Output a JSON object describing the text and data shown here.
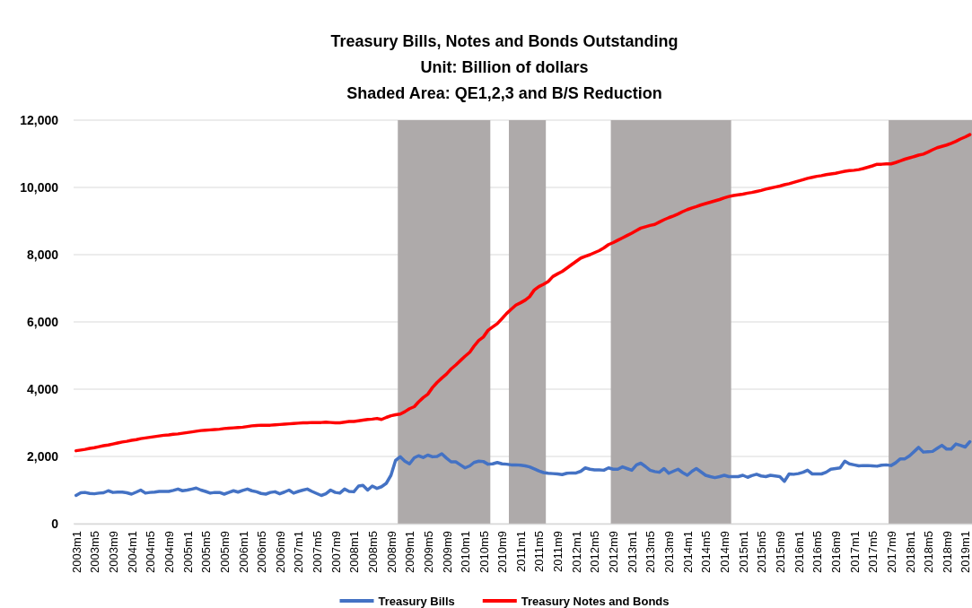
{
  "chart_data": {
    "type": "line",
    "title": "Treasury Bills, Notes and Bonds Outstanding",
    "subtitle": "Unit: Billion of dollars\nShaded Area: QE1,2,3 and B/S Reduction",
    "x": [
      "2003-01",
      "2003-02",
      "2003-03",
      "2003-04",
      "2003-05",
      "2003-06",
      "2003-07",
      "2003-08",
      "2003-09",
      "2003-10",
      "2003-11",
      "2003-12",
      "2004-01",
      "2004-02",
      "2004-03",
      "2004-04",
      "2004-05",
      "2004-06",
      "2004-07",
      "2004-08",
      "2004-09",
      "2004-10",
      "2004-11",
      "2004-12",
      "2005-01",
      "2005-02",
      "2005-03",
      "2005-04",
      "2005-05",
      "2005-06",
      "2005-07",
      "2005-08",
      "2005-09",
      "2005-10",
      "2005-11",
      "2005-12",
      "2006-01",
      "2006-02",
      "2006-03",
      "2006-04",
      "2006-05",
      "2006-06",
      "2006-07",
      "2006-08",
      "2006-09",
      "2006-10",
      "2006-11",
      "2006-12",
      "2007-01",
      "2007-02",
      "2007-03",
      "2007-04",
      "2007-05",
      "2007-06",
      "2007-07",
      "2007-08",
      "2007-09",
      "2007-10",
      "2007-11",
      "2007-12",
      "2008-01",
      "2008-02",
      "2008-03",
      "2008-04",
      "2008-05",
      "2008-06",
      "2008-07",
      "2008-08",
      "2008-09",
      "2008-10",
      "2008-11",
      "2008-12",
      "2009-01",
      "2009-02",
      "2009-03",
      "2009-04",
      "2009-05",
      "2009-06",
      "2009-07",
      "2009-08",
      "2009-09",
      "2009-10",
      "2009-11",
      "2009-12",
      "2010-01",
      "2010-02",
      "2010-03",
      "2010-04",
      "2010-05",
      "2010-06",
      "2010-07",
      "2010-08",
      "2010-09",
      "2010-10",
      "2010-11",
      "2010-12",
      "2011-01",
      "2011-02",
      "2011-03",
      "2011-04",
      "2011-05",
      "2011-06",
      "2011-07",
      "2011-08",
      "2011-09",
      "2011-10",
      "2011-11",
      "2011-12",
      "2012-01",
      "2012-02",
      "2012-03",
      "2012-04",
      "2012-05",
      "2012-06",
      "2012-07",
      "2012-08",
      "2012-09",
      "2012-10",
      "2012-11",
      "2012-12",
      "2013-01",
      "2013-02",
      "2013-03",
      "2013-04",
      "2013-05",
      "2013-06",
      "2013-07",
      "2013-08",
      "2013-09",
      "2013-10",
      "2013-11",
      "2013-12",
      "2014-01",
      "2014-02",
      "2014-03",
      "2014-04",
      "2014-05",
      "2014-06",
      "2014-07",
      "2014-08",
      "2014-09",
      "2014-10",
      "2014-11",
      "2014-12",
      "2015-01",
      "2015-02",
      "2015-03",
      "2015-04",
      "2015-05",
      "2015-06",
      "2015-07",
      "2015-08",
      "2015-09",
      "2015-10",
      "2015-11",
      "2015-12",
      "2016-01",
      "2016-02",
      "2016-03",
      "2016-04",
      "2016-05",
      "2016-06",
      "2016-07",
      "2016-08",
      "2016-09",
      "2016-10",
      "2016-11",
      "2016-12",
      "2017-01",
      "2017-02",
      "2017-03",
      "2017-04",
      "2017-05",
      "2017-06",
      "2017-07",
      "2017-08",
      "2017-09",
      "2017-10",
      "2017-11",
      "2017-12",
      "2018-01",
      "2018-02",
      "2018-03",
      "2018-04",
      "2018-05",
      "2018-06",
      "2018-07",
      "2018-08",
      "2018-09",
      "2018-10",
      "2018-11",
      "2018-12",
      "2019-01",
      "2019-02"
    ],
    "series": [
      {
        "name": "Treasury Bills",
        "color": "#4472c4",
        "values": [
          840,
          920,
          930,
          900,
          890,
          910,
          920,
          980,
          930,
          940,
          940,
          920,
          880,
          940,
          1000,
          910,
          930,
          940,
          960,
          960,
          960,
          990,
          1030,
          980,
          1000,
          1030,
          1060,
          1000,
          960,
          910,
          930,
          930,
          880,
          930,
          980,
          940,
          990,
          1030,
          980,
          950,
          900,
          880,
          930,
          950,
          890,
          940,
          1000,
          910,
          960,
          1000,
          1030,
          960,
          900,
          840,
          890,
          1000,
          930,
          910,
          1030,
          960,
          950,
          1120,
          1140,
          1000,
          1120,
          1050,
          1100,
          1200,
          1440,
          1880,
          1990,
          1860,
          1780,
          1960,
          2020,
          1970,
          2040,
          1990,
          2000,
          2080,
          1950,
          1840,
          1840,
          1750,
          1660,
          1720,
          1820,
          1860,
          1850,
          1770,
          1780,
          1820,
          1780,
          1770,
          1750,
          1750,
          1740,
          1720,
          1690,
          1630,
          1570,
          1520,
          1500,
          1490,
          1480,
          1460,
          1500,
          1510,
          1510,
          1560,
          1660,
          1620,
          1600,
          1600,
          1590,
          1660,
          1620,
          1620,
          1690,
          1640,
          1590,
          1750,
          1800,
          1700,
          1590,
          1550,
          1530,
          1640,
          1500,
          1560,
          1620,
          1520,
          1440,
          1560,
          1640,
          1540,
          1440,
          1400,
          1370,
          1400,
          1440,
          1400,
          1400,
          1400,
          1440,
          1380,
          1430,
          1470,
          1420,
          1400,
          1440,
          1420,
          1400,
          1260,
          1480,
          1470,
          1490,
          1530,
          1590,
          1480,
          1480,
          1480,
          1530,
          1620,
          1640,
          1660,
          1860,
          1780,
          1750,
          1720,
          1730,
          1730,
          1720,
          1710,
          1740,
          1750,
          1730,
          1810,
          1930,
          1930,
          2020,
          2150,
          2270,
          2130,
          2140,
          2150,
          2240,
          2330,
          2220,
          2220,
          2370,
          2330,
          2280,
          2440
        ]
      },
      {
        "name": "Treasury Notes and Bonds",
        "color": "#ff0000",
        "values": [
          2170,
          2190,
          2210,
          2240,
          2260,
          2290,
          2320,
          2340,
          2370,
          2400,
          2430,
          2450,
          2480,
          2500,
          2530,
          2550,
          2570,
          2590,
          2610,
          2630,
          2640,
          2660,
          2670,
          2690,
          2710,
          2730,
          2750,
          2770,
          2780,
          2790,
          2800,
          2810,
          2830,
          2840,
          2850,
          2860,
          2870,
          2890,
          2910,
          2920,
          2930,
          2930,
          2930,
          2940,
          2950,
          2960,
          2970,
          2980,
          2990,
          3000,
          3000,
          3010,
          3010,
          3010,
          3020,
          3010,
          3000,
          3000,
          3020,
          3040,
          3040,
          3060,
          3080,
          3100,
          3110,
          3130,
          3100,
          3160,
          3210,
          3240,
          3260,
          3330,
          3420,
          3480,
          3620,
          3750,
          3850,
          4050,
          4200,
          4330,
          4450,
          4600,
          4720,
          4850,
          4980,
          5100,
          5280,
          5450,
          5550,
          5750,
          5850,
          5950,
          6100,
          6250,
          6380,
          6500,
          6570,
          6650,
          6750,
          6950,
          7050,
          7120,
          7200,
          7350,
          7430,
          7500,
          7600,
          7700,
          7800,
          7900,
          7950,
          8000,
          8060,
          8120,
          8200,
          8300,
          8360,
          8430,
          8500,
          8570,
          8640,
          8720,
          8790,
          8830,
          8870,
          8900,
          8970,
          9040,
          9100,
          9150,
          9210,
          9280,
          9340,
          9390,
          9430,
          9480,
          9520,
          9560,
          9600,
          9640,
          9690,
          9730,
          9760,
          9780,
          9800,
          9830,
          9850,
          9880,
          9910,
          9950,
          9980,
          10010,
          10040,
          10080,
          10110,
          10150,
          10190,
          10230,
          10270,
          10300,
          10330,
          10350,
          10380,
          10400,
          10420,
          10450,
          10480,
          10500,
          10510,
          10530,
          10560,
          10600,
          10640,
          10690,
          10690,
          10700,
          10700,
          10740,
          10790,
          10840,
          10880,
          10920,
          10960,
          10990,
          11050,
          11120,
          11180,
          11220,
          11260,
          11310,
          11370,
          11440,
          11500,
          11570
        ]
      }
    ],
    "xlim": [
      "2002-12-16",
      "2019-02-15"
    ],
    "xticks": [
      {
        "value": "2003-01",
        "label": "2003m1"
      },
      {
        "value": "2003-05",
        "label": "2003m5"
      },
      {
        "value": "2003-09",
        "label": "2003m9"
      },
      {
        "value": "2004-01",
        "label": "2004m1"
      },
      {
        "value": "2004-05",
        "label": "2004m5"
      },
      {
        "value": "2004-09",
        "label": "2004m9"
      },
      {
        "value": "2005-01",
        "label": "2005m1"
      },
      {
        "value": "2005-05",
        "label": "2005m5"
      },
      {
        "value": "2005-09",
        "label": "2005m9"
      },
      {
        "value": "2006-01",
        "label": "2006m1"
      },
      {
        "value": "2006-05",
        "label": "2006m5"
      },
      {
        "value": "2006-09",
        "label": "2006m9"
      },
      {
        "value": "2007-01",
        "label": "2007m1"
      },
      {
        "value": "2007-05",
        "label": "2007m5"
      },
      {
        "value": "2007-09",
        "label": "2007m9"
      },
      {
        "value": "2008-01",
        "label": "2008m1"
      },
      {
        "value": "2008-05",
        "label": "2008m5"
      },
      {
        "value": "2008-09",
        "label": "2008m9"
      },
      {
        "value": "2009-01",
        "label": "2009m1"
      },
      {
        "value": "2009-05",
        "label": "2009m5"
      },
      {
        "value": "2009-09",
        "label": "2009m9"
      },
      {
        "value": "2010-01",
        "label": "2010m1"
      },
      {
        "value": "2010-05",
        "label": "2010m5"
      },
      {
        "value": "2010-09",
        "label": "2010m9"
      },
      {
        "value": "2011-01",
        "label": "2011m1"
      },
      {
        "value": "2011-05",
        "label": "2011m5"
      },
      {
        "value": "2011-09",
        "label": "2011m9"
      },
      {
        "value": "2012-01",
        "label": "2012m1"
      },
      {
        "value": "2012-05",
        "label": "2012m5"
      },
      {
        "value": "2012-09",
        "label": "2012m9"
      },
      {
        "value": "2013-01",
        "label": "2013m1"
      },
      {
        "value": "2013-05",
        "label": "2013m5"
      },
      {
        "value": "2013-09",
        "label": "2013m9"
      },
      {
        "value": "2014-01",
        "label": "2014m1"
      },
      {
        "value": "2014-05",
        "label": "2014m5"
      },
      {
        "value": "2014-09",
        "label": "2014m9"
      },
      {
        "value": "2015-01",
        "label": "2015m1"
      },
      {
        "value": "2015-05",
        "label": "2015m5"
      },
      {
        "value": "2015-09",
        "label": "2015m9"
      },
      {
        "value": "2016-01",
        "label": "2016m1"
      },
      {
        "value": "2016-05",
        "label": "2016m5"
      },
      {
        "value": "2016-09",
        "label": "2016m9"
      },
      {
        "value": "2017-01",
        "label": "2017m1"
      },
      {
        "value": "2017-05",
        "label": "2017m5"
      },
      {
        "value": "2017-09",
        "label": "2017m9"
      },
      {
        "value": "2018-01",
        "label": "2018m1"
      },
      {
        "value": "2018-05",
        "label": "2018m5"
      },
      {
        "value": "2018-09",
        "label": "2018m9"
      },
      {
        "value": "2019-01",
        "label": "2019m1"
      }
    ],
    "ylim": [
      0,
      12000
    ],
    "yticks": [
      0,
      {
        "value": 2000,
        "label": "2,000"
      },
      {
        "value": 4000,
        "label": "4,000"
      },
      {
        "value": 6000,
        "label": "6,000"
      },
      {
        "value": 8000,
        "label": "8,000"
      },
      {
        "value": 10000,
        "label": "10,000"
      },
      {
        "value": 12000,
        "label": "12,000"
      }
    ],
    "bands": [
      {
        "axis": "x",
        "from": "2008-10-16",
        "to": "2010-06-16",
        "color": "#aeaaaa"
      },
      {
        "axis": "x",
        "from": "2010-10-16",
        "to": "2011-06-16",
        "color": "#aeaaaa"
      },
      {
        "axis": "x",
        "from": "2012-08-16",
        "to": "2014-10-16",
        "color": "#aeaaaa"
      },
      {
        "axis": "x",
        "from": "2017-08-16",
        "to": "2019-02-15",
        "color": "#aeaaaa"
      }
    ],
    "grid": "y",
    "legend": "bottom"
  }
}
